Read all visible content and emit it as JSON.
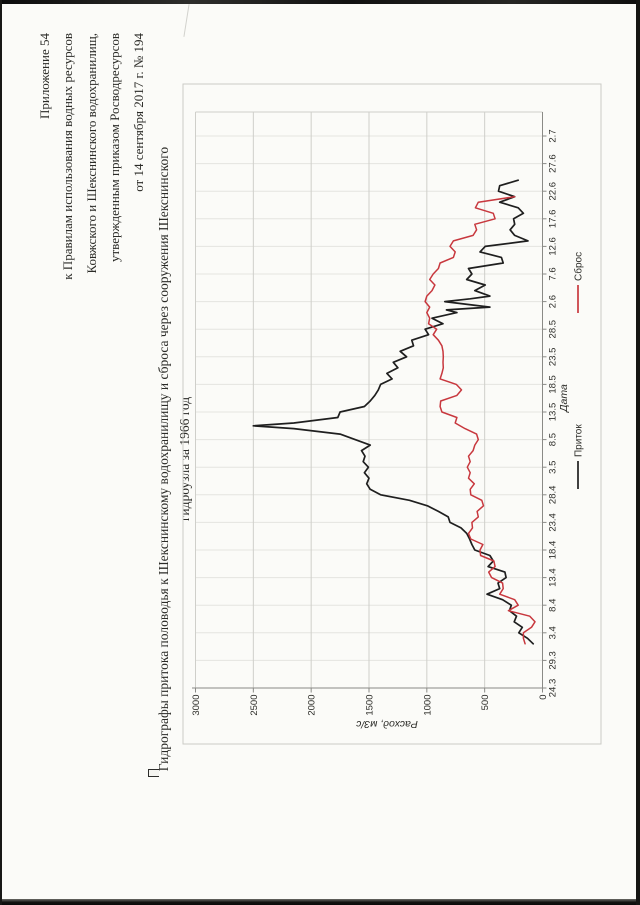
{
  "document": {
    "header_lines": [
      "Приложение 54",
      "к Правилам использования водных ресурсов",
      "Ковжского и Шекснинского водохранилищ,",
      "утвержденным приказом Росводресурсов",
      "от 14 сентября 2017 г. № 194"
    ],
    "title_line1": "Гидрографы притока половодья к Шекснинскому водохранилищу и сброса через сооружения Шекснинского",
    "title_line2": "гидроузла за 1966 год"
  },
  "chart_data": {
    "type": "line",
    "title": "Гидрографы притока половодья к Шекснинскому водохранилищу и сброса через сооружения Шекснинского гидроузла за 1966 год",
    "xlabel": "Дата",
    "ylabel": "Расход, м3/с",
    "ylim": [
      0,
      3000
    ],
    "yticks": [
      0,
      500,
      1000,
      1500,
      2000,
      2500,
      3000
    ],
    "x_tick_labels": [
      "24.3",
      "29.3",
      "3.4",
      "8.4",
      "13.4",
      "18.4",
      "23.4",
      "28.4",
      "3.5",
      "8.5",
      "13.5",
      "18.5",
      "23.5",
      "28.5",
      "2.6",
      "7.6",
      "12.6",
      "17.6",
      "22.6",
      "27.6",
      "2.7"
    ],
    "x_unit": "days since 24.3.1966, ticks every 5 days",
    "grid": true,
    "legend_position": "bottom",
    "series": [
      {
        "name": "Приток",
        "color": "#1f1f1f",
        "x": [
          8,
          9,
          10,
          11,
          12,
          13,
          14,
          15,
          16,
          17,
          18,
          19,
          20,
          21,
          22,
          23,
          24,
          25,
          26,
          27,
          28,
          29,
          30,
          31,
          32,
          33,
          34,
          35,
          36,
          37,
          38,
          39,
          40,
          41,
          42,
          43,
          44,
          45,
          46,
          47,
          47.5,
          48,
          49,
          50,
          51,
          52,
          53,
          54,
          55,
          56,
          57,
          58,
          59,
          60,
          61,
          62,
          63,
          64,
          65,
          66,
          67,
          68,
          68.5,
          69,
          70,
          70.5,
          71,
          72,
          73,
          74,
          75,
          76,
          77,
          78,
          79,
          80,
          81,
          82,
          83,
          84,
          85,
          86,
          87,
          88,
          89,
          90,
          91,
          92
        ],
        "values": [
          80,
          130,
          205,
          175,
          245,
          225,
          285,
          270,
          345,
          480,
          370,
          385,
          315,
          325,
          470,
          425,
          455,
          585,
          610,
          630,
          655,
          705,
          800,
          815,
          900,
          995,
          1150,
          1400,
          1490,
          1520,
          1500,
          1540,
          1505,
          1550,
          1535,
          1565,
          1490,
          1620,
          1750,
          2150,
          2500,
          2150,
          1770,
          1750,
          1540,
          1490,
          1450,
          1420,
          1400,
          1300,
          1345,
          1250,
          1290,
          1175,
          1230,
          1115,
          1130,
          985,
          1015,
          860,
          955,
          740,
          830,
          455,
          845,
          625,
          455,
          585,
          495,
          655,
          610,
          640,
          340,
          355,
          540,
          495,
          125,
          240,
          280,
          240,
          250,
          165,
          210,
          370,
          240,
          380,
          370,
          210
        ]
      },
      {
        "name": "Сброс",
        "color": "#c8383e",
        "x": [
          8,
          9,
          10,
          11,
          12,
          13,
          14,
          15,
          16,
          17,
          18,
          19,
          20,
          21,
          22,
          23,
          24,
          25,
          26,
          27,
          28,
          29,
          30,
          31,
          32,
          33,
          34,
          35,
          36,
          37,
          38,
          39,
          40,
          41,
          42,
          43,
          44,
          45,
          46,
          47,
          48,
          49,
          50,
          51,
          52,
          53,
          54,
          55,
          56,
          57,
          58,
          59,
          60,
          61,
          62,
          63,
          64,
          65,
          66,
          67,
          68,
          69,
          70,
          71,
          72,
          73,
          74,
          75,
          76,
          77,
          78,
          79,
          80,
          81,
          82,
          83,
          84,
          85,
          86,
          87,
          88,
          89
        ],
        "values": [
          150,
          165,
          165,
          95,
          65,
          110,
          295,
          210,
          240,
          370,
          340,
          345,
          440,
          465,
          410,
          420,
          535,
          540,
          515,
          620,
          640,
          605,
          610,
          555,
          565,
          510,
          525,
          620,
          625,
          590,
          640,
          625,
          650,
          625,
          640,
          600,
          585,
          555,
          570,
          670,
          755,
          740,
          870,
          885,
          880,
          740,
          700,
          745,
          885,
          870,
          858,
          860,
          858,
          860,
          870,
          900,
          945,
          915,
          985,
          975,
          1000,
          975,
          1015,
          1000,
          955,
          930,
          975,
          945,
          900,
          885,
          770,
          755,
          800,
          770,
          600,
          570,
          585,
          410,
          425,
          580,
          555,
          240
        ]
      }
    ]
  }
}
